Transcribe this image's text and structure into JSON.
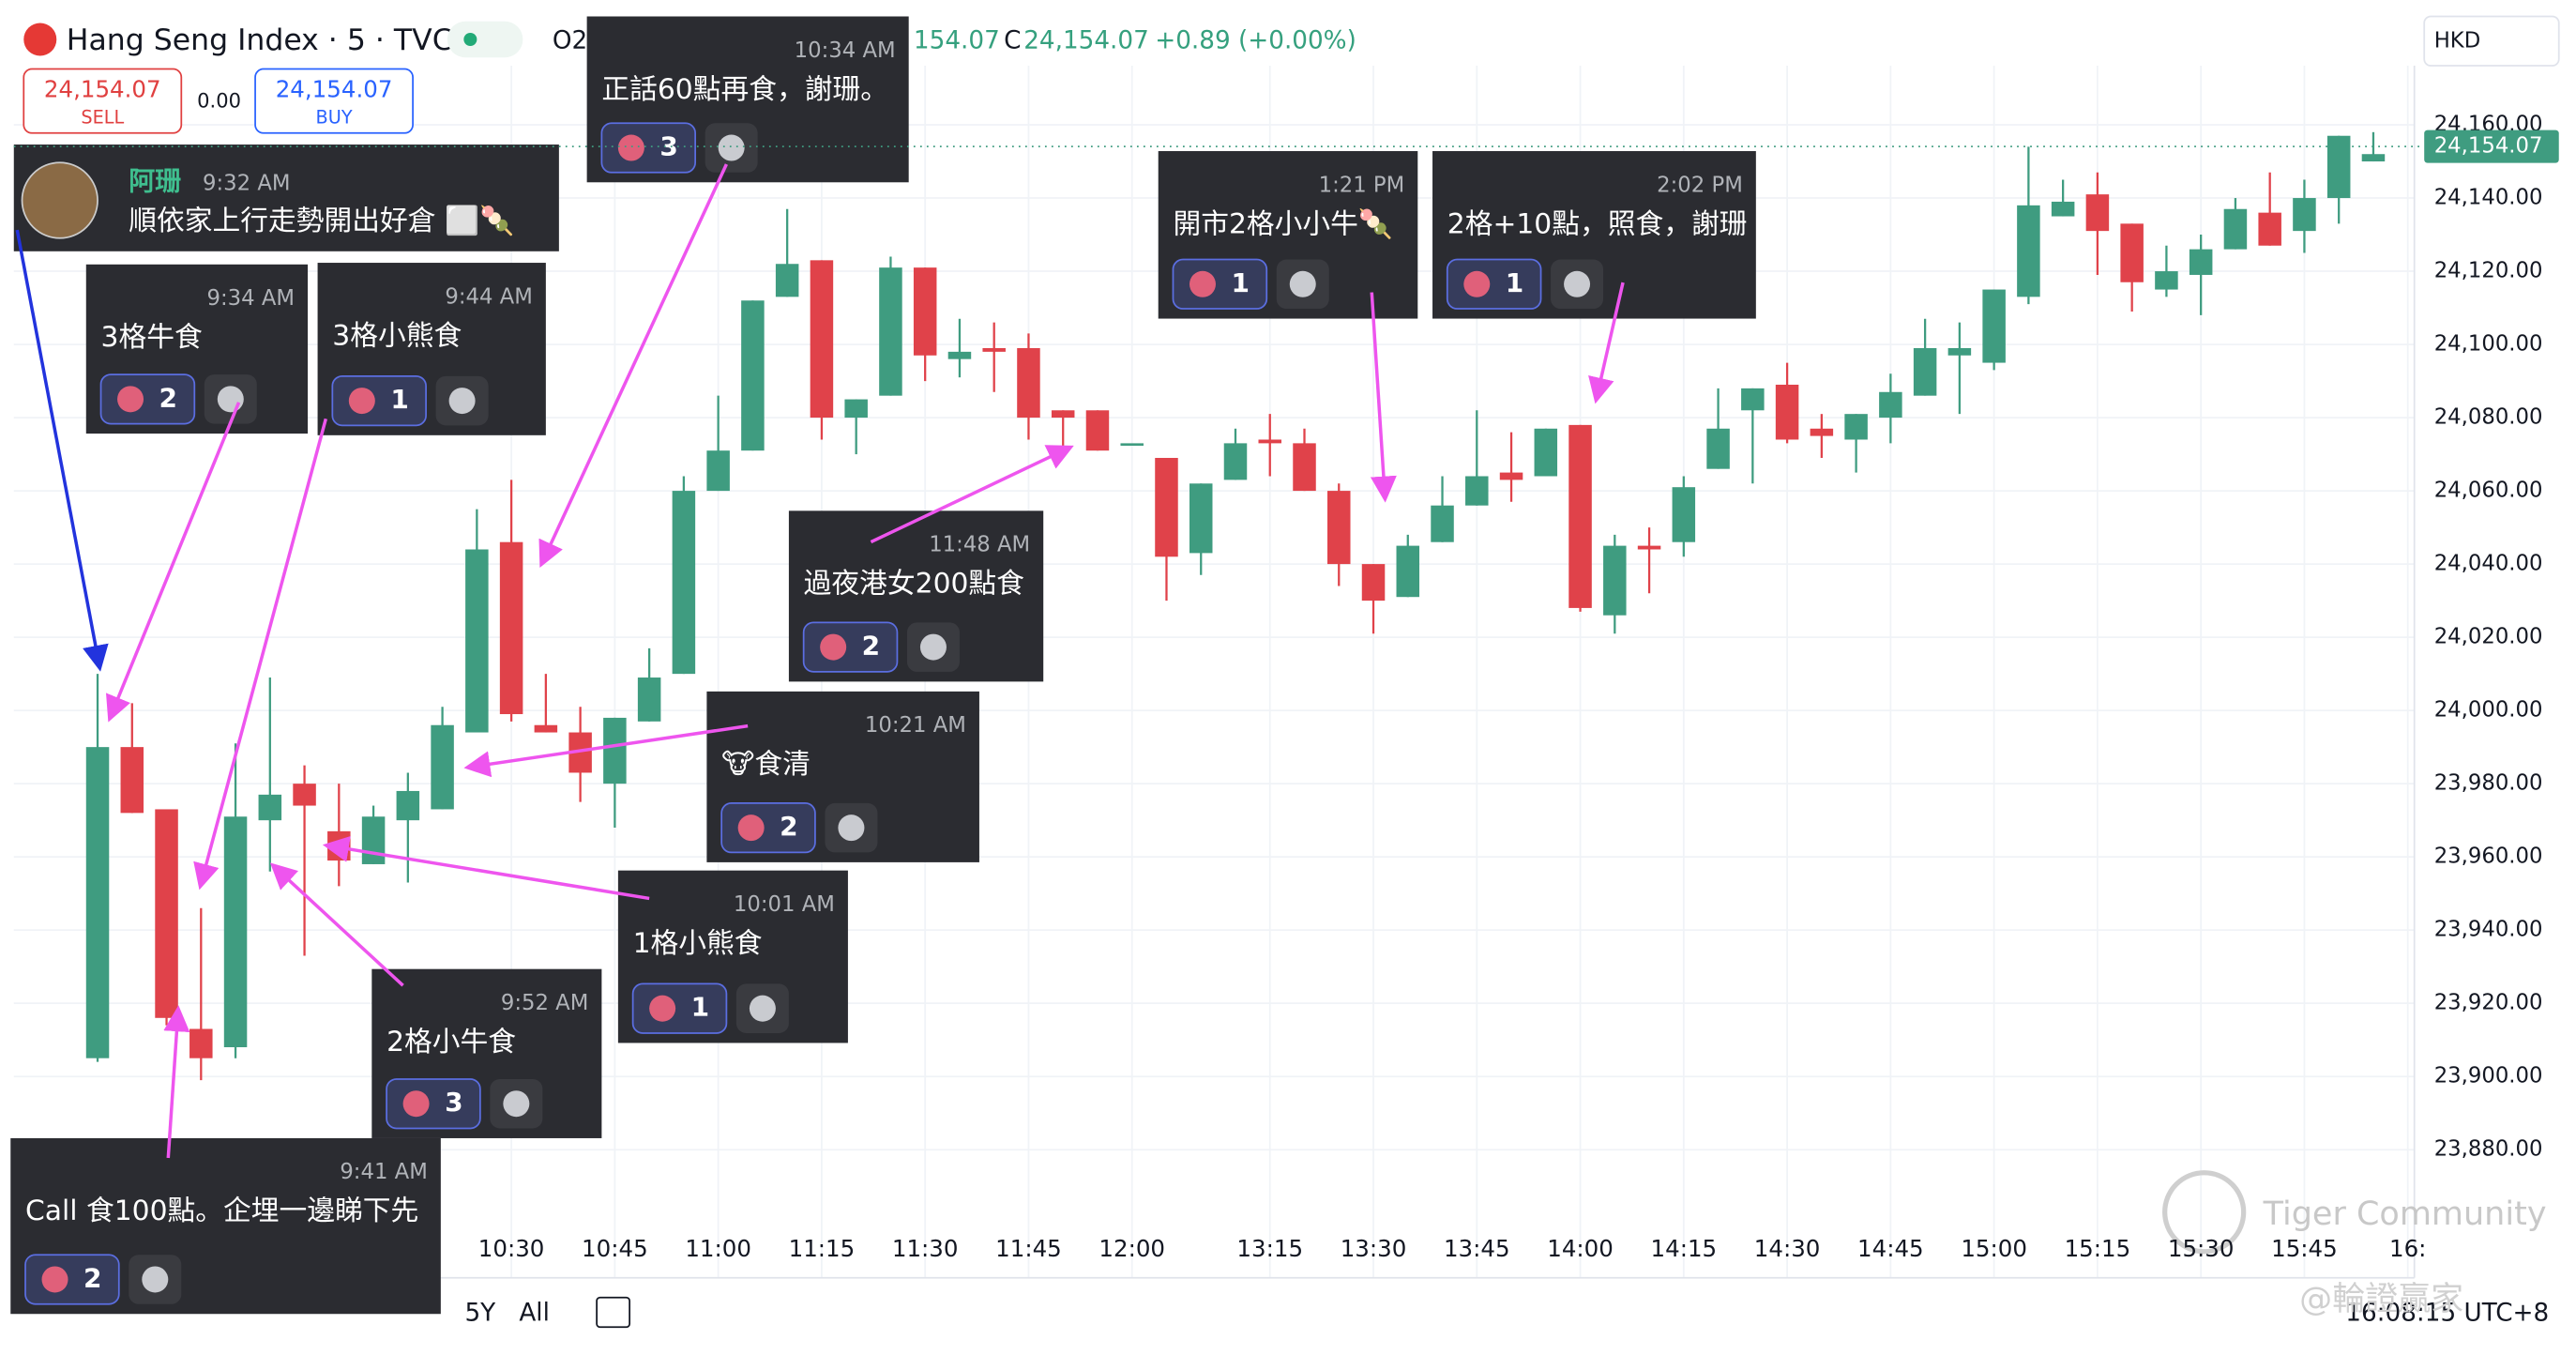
{
  "header": {
    "title": "Hang Seng Index · 5 · TVC",
    "ohlc": [
      "O2",
      "154.07",
      "C",
      "24,154.07",
      "+0.89 (+0.00%)"
    ],
    "sell": {
      "price": "24,154.07",
      "label": "SELL"
    },
    "spread": "0.00",
    "buy": {
      "price": "24,154.07",
      "label": "BUY"
    },
    "currency": "HKD"
  },
  "chart": {
    "yticks": [
      {
        "value": 24160,
        "label": "24,160.00"
      },
      {
        "value": 24140,
        "label": "24,140.00"
      },
      {
        "value": 24120,
        "label": "24,120.00"
      },
      {
        "value": 24100,
        "label": "24,100.00"
      },
      {
        "value": 24080,
        "label": "24,080.00"
      },
      {
        "value": 24060,
        "label": "24,060.00"
      },
      {
        "value": 24040,
        "label": "24,040.00"
      },
      {
        "value": 24020,
        "label": "24,020.00"
      },
      {
        "value": 24000,
        "label": "24,000.00"
      },
      {
        "value": 23980,
        "label": "23,980.00"
      },
      {
        "value": 23960,
        "label": "23,960.00"
      },
      {
        "value": 23940,
        "label": "23,940.00"
      },
      {
        "value": 23920,
        "label": "23,920.00"
      },
      {
        "value": 23900,
        "label": "23,900.00"
      },
      {
        "value": 23880,
        "label": "23,880.00"
      }
    ],
    "xticks": [
      "10:30",
      "10:45",
      "11:00",
      "11:15",
      "11:30",
      "11:45",
      "12:00",
      "13:15",
      "13:30",
      "13:45",
      "14:00",
      "14:15",
      "14:30",
      "14:45",
      "15:00",
      "15:15",
      "15:30",
      "15:45",
      "16:"
    ],
    "last_price": {
      "value": 24154.07,
      "label": "24,154.07"
    },
    "candles": {
      "morning": [
        [
          23905,
          24010,
          23904,
          23990
        ],
        [
          23990,
          24002,
          23972,
          23972
        ],
        [
          23973,
          23973,
          23914,
          23916
        ],
        [
          23913,
          23946,
          23899,
          23905
        ],
        [
          23908,
          23991,
          23905,
          23971
        ],
        [
          23970,
          24009,
          23956,
          23977
        ],
        [
          23980,
          23985,
          23933,
          23974
        ],
        [
          23967,
          23980,
          23952,
          23959
        ],
        [
          23958,
          23974,
          23958,
          23971
        ],
        [
          23970,
          23983,
          23953,
          23978
        ],
        [
          23973,
          24001,
          23973,
          23996
        ],
        [
          23994,
          24055,
          23994,
          24044
        ],
        [
          24046,
          24063,
          23997,
          23999
        ],
        [
          23996,
          24010,
          23994,
          23994
        ],
        [
          23994,
          24001,
          23975,
          23983
        ],
        [
          23980,
          23998,
          23968,
          23998
        ],
        [
          23997,
          24017,
          23997,
          24009
        ],
        [
          24010,
          24064,
          24010,
          24060
        ],
        [
          24060,
          24086,
          24060,
          24071
        ],
        [
          24071,
          24112,
          24071,
          24112
        ],
        [
          24113,
          24137,
          24113,
          24122
        ],
        [
          24123,
          24123,
          24074,
          24080
        ],
        [
          24080,
          24085,
          24070,
          24085
        ],
        [
          24086,
          24124,
          24086,
          24121
        ],
        [
          24121,
          24121,
          24090,
          24097
        ],
        [
          24096,
          24107,
          24091,
          24098
        ],
        [
          24099,
          24106,
          24087,
          24098
        ],
        [
          24099,
          24103,
          24074,
          24080
        ],
        [
          24082,
          24082,
          24072,
          24080
        ],
        [
          24082,
          24082,
          24071,
          24071
        ],
        [
          24073,
          24073,
          24073,
          24073
        ]
      ],
      "afternoon": [
        [
          24069,
          24069,
          24030,
          24042
        ],
        [
          24043,
          24062,
          24037,
          24062
        ],
        [
          24063,
          24077,
          24063,
          24073
        ],
        [
          24074,
          24081,
          24064,
          24073
        ],
        [
          24073,
          24077,
          24060,
          24060
        ],
        [
          24060,
          24062,
          24034,
          24040
        ],
        [
          24040,
          24040,
          24021,
          24030
        ],
        [
          24031,
          24048,
          24031,
          24045
        ],
        [
          24046,
          24064,
          24046,
          24056
        ],
        [
          24056,
          24082,
          24056,
          24064
        ],
        [
          24065,
          24076,
          24057,
          24063
        ],
        [
          24064,
          24077,
          24064,
          24077
        ],
        [
          24078,
          24078,
          24027,
          24028
        ],
        [
          24026,
          24048,
          24021,
          24045
        ],
        [
          24045,
          24050,
          24032,
          24044
        ],
        [
          24046,
          24064,
          24042,
          24061
        ],
        [
          24066,
          24088,
          24066,
          24077
        ],
        [
          24082,
          24088,
          24062,
          24088
        ],
        [
          24089,
          24095,
          24073,
          24074
        ],
        [
          24077,
          24081,
          24069,
          24075
        ],
        [
          24074,
          24081,
          24065,
          24081
        ],
        [
          24080,
          24092,
          24073,
          24087
        ],
        [
          24086,
          24107,
          24086,
          24099
        ],
        [
          24097,
          24106,
          24081,
          24099
        ],
        [
          24095,
          24115,
          24093,
          24115
        ],
        [
          24113,
          24154,
          24111,
          24138
        ],
        [
          24135,
          24145,
          24135,
          24139
        ],
        [
          24141,
          24147,
          24119,
          24131
        ],
        [
          24133,
          24133,
          24109,
          24117
        ],
        [
          24115,
          24127,
          24113,
          24120
        ],
        [
          24119,
          24130,
          24108,
          24126
        ],
        [
          24126,
          24140,
          24126,
          24137
        ],
        [
          24136,
          24147,
          24127,
          24127
        ],
        [
          24131,
          24145,
          24125,
          24140
        ],
        [
          24140,
          24157,
          24133,
          24157
        ],
        [
          24150,
          24158,
          24150,
          24152
        ]
      ]
    }
  },
  "messages": [
    {
      "author": "阿珊",
      "time": "9:32 AM",
      "text": "順依家上行走勢開出好倉 ⬜🍡"
    },
    {
      "time": "9:34 AM",
      "text": "3格牛食",
      "reactions": 2
    },
    {
      "time": "9:44 AM",
      "text": "3格小熊食",
      "reactions": 1
    },
    {
      "time": "10:34 AM",
      "text": "正話60點再食，謝珊。",
      "reactions": 3
    },
    {
      "time": "1:21 PM",
      "text": "開市2格小小牛🍡",
      "reactions": 1
    },
    {
      "time": "2:02 PM",
      "text": "2格+10點，照食，謝珊",
      "reactions": 1
    },
    {
      "time": "11:48 AM",
      "text": "過夜港女200點食",
      "reactions": 2
    },
    {
      "time": "10:21 AM",
      "text": "🐮食清",
      "reactions": 2
    },
    {
      "time": "10:01 AM",
      "text": "1格小熊食",
      "reactions": 1
    },
    {
      "time": "9:52 AM",
      "text": "2格小牛食",
      "reactions": 3
    },
    {
      "time": "9:41 AM",
      "text": "Call 食100點。企埋一邊睇下先",
      "reactions": 2
    }
  ],
  "toolbar": {
    "ranges": [
      "5Y",
      "All"
    ],
    "clock": "16:08:15 UTC+8"
  },
  "watermark": {
    "brand": "Tiger Community",
    "handle": "@輪證贏家"
  }
}
